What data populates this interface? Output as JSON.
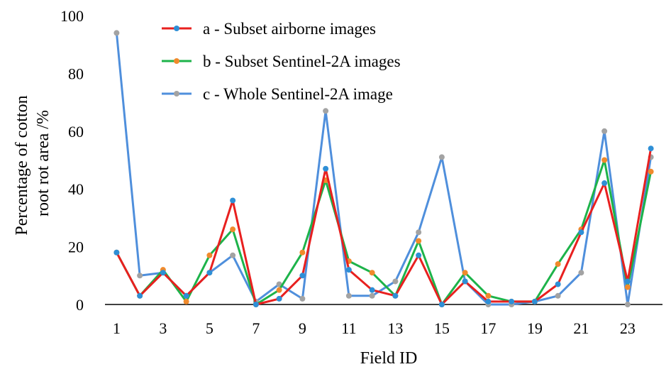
{
  "chart_data": {
    "type": "line",
    "title": "",
    "xlabel": "Field ID",
    "ylabel_lines": [
      "Percentage of cotton",
      "root rot area /%"
    ],
    "x": [
      1,
      2,
      3,
      4,
      5,
      6,
      7,
      8,
      9,
      10,
      11,
      12,
      13,
      14,
      15,
      16,
      17,
      18,
      19,
      20,
      21,
      22,
      23,
      24
    ],
    "x_tick_labels": [
      "1",
      "3",
      "5",
      "7",
      "9",
      "11",
      "13",
      "15",
      "17",
      "19",
      "21",
      "23"
    ],
    "x_tick_values": [
      1,
      3,
      5,
      7,
      9,
      11,
      13,
      15,
      17,
      19,
      21,
      23
    ],
    "xlim": [
      0.5,
      24.5
    ],
    "ylim": [
      0,
      100
    ],
    "y_ticks": [
      0,
      20,
      40,
      60,
      80,
      100
    ],
    "y_tick_labels": [
      "0",
      "20",
      "40",
      "60",
      "80",
      "100"
    ],
    "grid": false,
    "legend": "top-center",
    "series": [
      {
        "name": "a - Subset airborne images",
        "line_color": "#e8201f",
        "marker_color": "#2e8fd6",
        "values": [
          18,
          3,
          11,
          3,
          11,
          36,
          0,
          2,
          10,
          47,
          12,
          5,
          3,
          17,
          0,
          8,
          1,
          1,
          1,
          7,
          25,
          42,
          8,
          54
        ]
      },
      {
        "name": "b - Subset Sentinel-2A images",
        "line_color": "#1db34a",
        "marker_color": "#f08a2c",
        "values": [
          18,
          3,
          12,
          1,
          17,
          26,
          0,
          5,
          18,
          43,
          15,
          11,
          3,
          22,
          0,
          11,
          3,
          1,
          1,
          14,
          26,
          50,
          6,
          46
        ]
      },
      {
        "name": "c - Whole Sentinel-2A image",
        "line_color": "#4f8fdc",
        "marker_color": "#a3a3a3",
        "values": [
          94,
          10,
          11,
          3,
          11,
          17,
          1,
          7,
          2,
          67,
          3,
          3,
          8,
          25,
          51,
          8,
          0,
          0,
          1,
          3,
          11,
          60,
          0,
          51
        ]
      }
    ]
  }
}
